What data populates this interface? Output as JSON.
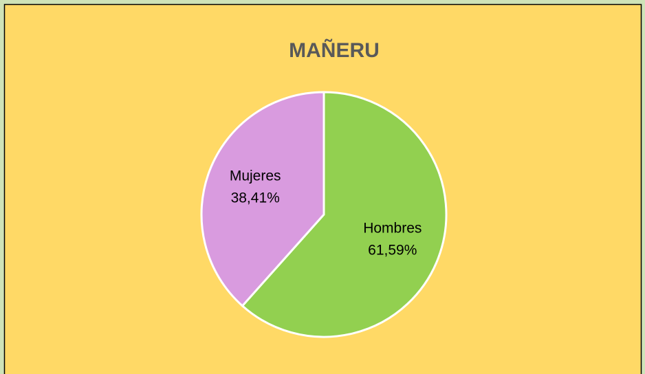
{
  "chart_data": {
    "type": "pie",
    "title": "MAÑERU",
    "categories": [
      "Hombres",
      "Mujeres"
    ],
    "values": [
      61.59,
      38.41
    ],
    "value_labels": [
      "61,59%",
      "38,41%"
    ],
    "colors": [
      "#92d050",
      "#d99bdf"
    ]
  }
}
